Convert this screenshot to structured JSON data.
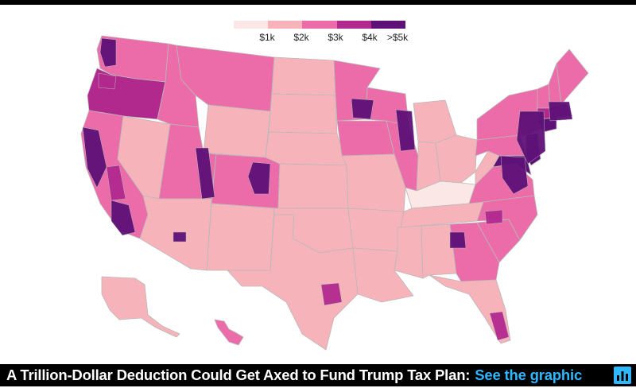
{
  "legend": {
    "colors": [
      "#fbe7e6",
      "#f7b3ba",
      "#ec6ca9",
      "#b2298e",
      "#5e1177"
    ],
    "labels": [
      "$1k",
      "$2k",
      "$3k",
      "$4k",
      ">$5k"
    ]
  },
  "map": {
    "border_color": "#b9b9b9",
    "regions": [
      {
        "name": "washington",
        "tier": 2
      },
      {
        "name": "oregon",
        "tier": 3
      },
      {
        "name": "california",
        "tier": 2
      },
      {
        "name": "nevada",
        "tier": 1
      },
      {
        "name": "idaho",
        "tier": 2
      },
      {
        "name": "montana",
        "tier": 2
      },
      {
        "name": "wyoming",
        "tier": 1
      },
      {
        "name": "utah",
        "tier": 2
      },
      {
        "name": "arizona",
        "tier": 1
      },
      {
        "name": "colorado",
        "tier": 2
      },
      {
        "name": "new-mexico",
        "tier": 1
      },
      {
        "name": "north-dakota",
        "tier": 1
      },
      {
        "name": "south-dakota",
        "tier": 1
      },
      {
        "name": "nebraska",
        "tier": 1
      },
      {
        "name": "kansas",
        "tier": 1
      },
      {
        "name": "oklahoma",
        "tier": 1
      },
      {
        "name": "texas",
        "tier": 1
      },
      {
        "name": "minnesota",
        "tier": 2
      },
      {
        "name": "iowa",
        "tier": 2
      },
      {
        "name": "missouri",
        "tier": 1
      },
      {
        "name": "arkansas",
        "tier": 1
      },
      {
        "name": "louisiana",
        "tier": 1
      },
      {
        "name": "wisconsin",
        "tier": 2
      },
      {
        "name": "illinois",
        "tier": 2
      },
      {
        "name": "michigan",
        "tier": 1
      },
      {
        "name": "indiana",
        "tier": 1
      },
      {
        "name": "ohio",
        "tier": 1
      },
      {
        "name": "kentucky",
        "tier": 0
      },
      {
        "name": "tennessee",
        "tier": 1
      },
      {
        "name": "mississippi",
        "tier": 1
      },
      {
        "name": "alabama",
        "tier": 1
      },
      {
        "name": "georgia",
        "tier": 2
      },
      {
        "name": "florida",
        "tier": 1
      },
      {
        "name": "south-carolina",
        "tier": 2
      },
      {
        "name": "north-carolina",
        "tier": 2
      },
      {
        "name": "virginia",
        "tier": 2
      },
      {
        "name": "west-virginia",
        "tier": 1
      },
      {
        "name": "pennsylvania",
        "tier": 2
      },
      {
        "name": "new-york",
        "tier": 2
      },
      {
        "name": "maryland",
        "tier": 4
      },
      {
        "name": "new-jersey",
        "tier": 4
      },
      {
        "name": "connecticut",
        "tier": 4
      },
      {
        "name": "massachusetts",
        "tier": 3
      },
      {
        "name": "vermont",
        "tier": 2
      },
      {
        "name": "new-hampshire",
        "tier": 2
      },
      {
        "name": "maine",
        "tier": 2
      },
      {
        "name": "alaska",
        "tier": 1
      },
      {
        "name": "hawaii",
        "tier": 2
      }
    ]
  },
  "footer": {
    "headline": "A Trillion-Dollar Deduction Could Get Axed to Fund Trump Tax Plan:",
    "link": "See the graphic"
  }
}
